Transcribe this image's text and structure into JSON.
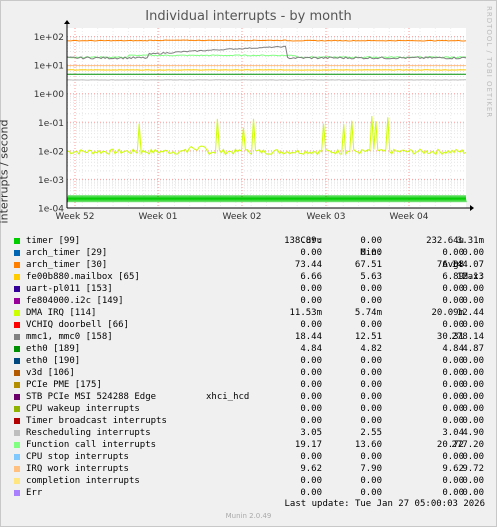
{
  "title": "Individual interrupts - by month",
  "ylabel": "interrupts / second",
  "vertical_label": "RRDTOOL / TOBI OETIKER",
  "legend_headers": {
    "cur": "Cur:",
    "min": "Min:",
    "avg": "Avg:",
    "max": "Max:"
  },
  "last_update": "Last update: Tue Jan 27 05:00:03 2026",
  "footer": "Munin 2.0.49",
  "colors": {
    "background": "#f0f0f0",
    "plot_bg": "#ffffff",
    "grid_minor": "#e6e6e6",
    "grid_major": "#ff8080"
  },
  "chart_data": {
    "type": "line",
    "title": "Individual interrupts - by month",
    "xlabel": "",
    "ylabel": "interrupts / second",
    "yscale": "log",
    "ylim": [
      0.0001,
      200
    ],
    "y_ticks": [
      "1e-04",
      "1e-03",
      "1e-02",
      "1e-01",
      "1e+00",
      "1e+01",
      "1e+02"
    ],
    "x_ticks": [
      "Week 52",
      "Week 01",
      "Week 02",
      "Week 03",
      "Week 04"
    ],
    "grid": true,
    "series": [
      {
        "name": "timer [99]",
        "color": "#00cc00",
        "cur": "138.89u",
        "min": "0.00",
        "avg": "232.64u",
        "max": "3.31m"
      },
      {
        "name": "arch_timer [29]",
        "color": "#0066b3",
        "cur": "0.00",
        "min": "0.00",
        "avg": "0.00",
        "max": "0.00"
      },
      {
        "name": "arch_timer [30]",
        "color": "#ff8000",
        "cur": "73.44",
        "min": "67.51",
        "avg": "76.08",
        "max": "144.07"
      },
      {
        "name": "fe00b880.mailbox [65]",
        "color": "#ffcc00",
        "cur": "6.66",
        "min": "5.63",
        "avg": "6.89",
        "max": "12.13"
      },
      {
        "name": "uart-pl011 [153]",
        "color": "#330099",
        "cur": "0.00",
        "min": "0.00",
        "avg": "0.00",
        "max": "0.00"
      },
      {
        "name": "fe804000.i2c [149]",
        "color": "#990099",
        "cur": "0.00",
        "min": "0.00",
        "avg": "0.00",
        "max": "0.00"
      },
      {
        "name": "DMA IRQ [114]",
        "color": "#ccff00",
        "cur": "11.53m",
        "min": "5.74m",
        "avg": "20.09m",
        "max": "12.44"
      },
      {
        "name": "VCHIQ doorbell [66]",
        "color": "#ff0000",
        "cur": "0.00",
        "min": "0.00",
        "avg": "0.00",
        "max": "0.00"
      },
      {
        "name": "mmc1, mmc0 [158]",
        "color": "#808080",
        "cur": "18.44",
        "min": "12.51",
        "avg": "30.31",
        "max": "278.14"
      },
      {
        "name": "eth0 [189]",
        "color": "#008f00",
        "cur": "4.84",
        "min": "4.82",
        "avg": "4.84",
        "max": "4.87"
      },
      {
        "name": "eth0 [190]",
        "color": "#00487d",
        "cur": "0.00",
        "min": "0.00",
        "avg": "0.00",
        "max": "0.00"
      },
      {
        "name": "v3d [106]",
        "color": "#b35a00",
        "cur": "0.00",
        "min": "0.00",
        "avg": "0.00",
        "max": "0.00"
      },
      {
        "name": "PCIe PME [175]",
        "color": "#b38f00",
        "cur": "0.00",
        "min": "0.00",
        "avg": "0.00",
        "max": "0.00"
      },
      {
        "name": "STB PCIe MSI 524288 Edge",
        "extra": "xhci_hcd",
        "color": "#6b006b",
        "cur": "0.00",
        "min": "0.00",
        "avg": "0.00",
        "max": "0.00"
      },
      {
        "name": "CPU wakeup interrupts",
        "color": "#8fb300",
        "cur": "0.00",
        "min": "0.00",
        "avg": "0.00",
        "max": "0.00"
      },
      {
        "name": "Timer broadcast interrupts",
        "color": "#b30000",
        "cur": "0.00",
        "min": "0.00",
        "avg": "0.00",
        "max": "0.00"
      },
      {
        "name": "Rescheduling interrupts",
        "color": "#bebebe",
        "cur": "3.05",
        "min": "2.55",
        "avg": "3.04",
        "max": "4.90"
      },
      {
        "name": "Function call interrupts",
        "color": "#80ff80",
        "cur": "19.17",
        "min": "13.60",
        "avg": "20.72",
        "max": "277.20"
      },
      {
        "name": "CPU stop interrupts",
        "color": "#80c9ff",
        "cur": "0.00",
        "min": "0.00",
        "avg": "0.00",
        "max": "0.00"
      },
      {
        "name": "IRQ work interrupts",
        "color": "#ffc080",
        "cur": "9.62",
        "min": "7.90",
        "avg": "9.62",
        "max": "9.72"
      },
      {
        "name": "completion interrupts",
        "color": "#ffe680",
        "cur": "0.00",
        "min": "0.00",
        "avg": "0.00",
        "max": "0.00"
      },
      {
        "name": "Err",
        "color": "#aa80ff",
        "cur": "0.00",
        "min": "0.00",
        "avg": "0.00",
        "max": "0.00"
      }
    ]
  }
}
